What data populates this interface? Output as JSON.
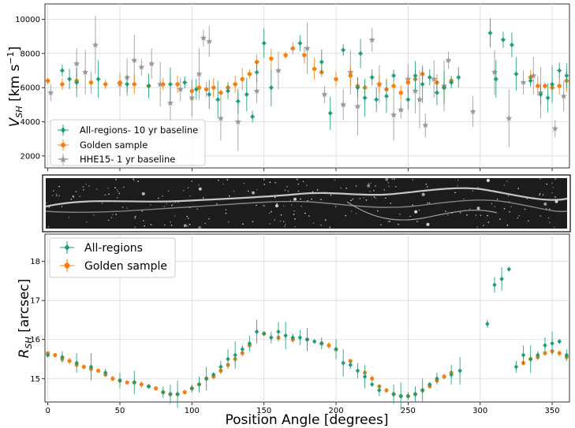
{
  "colors": {
    "all_regions": "#1b9e77",
    "golden": "#f77f0e",
    "hhe15": "#9a9a9a",
    "grid": "#d9d9d9"
  },
  "chart_data": [
    {
      "type": "scatter",
      "panel": "top",
      "ylabel": "V_SH [km s^-1]",
      "ylim": [
        1300,
        10900
      ],
      "xlim": [
        -2,
        362
      ],
      "yticks": [
        "2000",
        "4000",
        "6000",
        "8000",
        "10000"
      ],
      "grid": true,
      "legend_position": "bottom-left",
      "series": [
        {
          "name": "All-regions- 10 yr baseline",
          "color": "#1b9e77",
          "x": [
            10,
            15,
            20,
            35,
            55,
            70,
            85,
            95,
            103,
            112,
            118,
            125,
            132,
            138,
            142,
            145,
            150,
            155,
            175,
            190,
            196,
            205,
            215,
            217,
            220,
            225,
            228,
            235,
            240,
            250,
            255,
            260,
            265,
            270,
            275,
            280,
            285,
            307,
            311,
            316,
            322,
            325,
            335,
            342,
            347,
            350,
            355,
            360
          ],
          "y": [
            7000,
            6500,
            6300,
            6500,
            6200,
            6100,
            6200,
            6300,
            5900,
            5600,
            5300,
            5800,
            5200,
            5600,
            4300,
            6900,
            8600,
            6000,
            8600,
            7500,
            4500,
            8200,
            6000,
            8000,
            5400,
            6600,
            5300,
            5500,
            6700,
            5300,
            6700,
            6200,
            6600,
            5700,
            6000,
            6300,
            6600,
            9200,
            6500,
            8800,
            8500,
            6800,
            6400,
            5600,
            5400,
            6200,
            7000,
            6700
          ]
        },
        {
          "name": "Golden sample",
          "color": "#f77f0e",
          "x": [
            0,
            10,
            20,
            30,
            40,
            50,
            60,
            70,
            80,
            90,
            100,
            105,
            110,
            115,
            120,
            125,
            130,
            135,
            140,
            145,
            155,
            165,
            170,
            178,
            185,
            190,
            200,
            210,
            215,
            220,
            230,
            235,
            240,
            245,
            250,
            255,
            260,
            270,
            275,
            280,
            335,
            340,
            345,
            350,
            355,
            360
          ],
          "y": [
            6400,
            6200,
            6400,
            6300,
            6200,
            6300,
            6200,
            6100,
            6200,
            6200,
            5800,
            6000,
            5900,
            6000,
            5700,
            6000,
            6200,
            6500,
            6800,
            7500,
            7700,
            7900,
            8300,
            7900,
            7100,
            6900,
            6500,
            6700,
            6100,
            6000,
            6200,
            5900,
            6100,
            5700,
            6300,
            6500,
            6800,
            6300,
            6000,
            6400,
            6600,
            6100,
            6100,
            6000,
            6100,
            6400
          ]
        },
        {
          "name": "HHE15- 1 yr baseline",
          "color": "#9a9a9a",
          "x": [
            2,
            20,
            26,
            33,
            50,
            55,
            60,
            65,
            72,
            78,
            85,
            92,
            100,
            105,
            108,
            112,
            120,
            132,
            145,
            160,
            180,
            192,
            205,
            210,
            215,
            225,
            230,
            240,
            245,
            250,
            255,
            258,
            262,
            268,
            275,
            278,
            295,
            310,
            320,
            330,
            337,
            342,
            352,
            358
          ],
          "y": [
            5700,
            7400,
            6900,
            8500,
            6200,
            6600,
            7600,
            7200,
            7400,
            6200,
            5100,
            5900,
            5400,
            6800,
            8900,
            8700,
            4200,
            4000,
            5800,
            7000,
            8300,
            5600,
            5000,
            6900,
            4900,
            8800,
            6200,
            4400,
            4700,
            6500,
            5800,
            5300,
            3800,
            6500,
            6100,
            7600,
            4600,
            6900,
            4200,
            6300,
            6700,
            5700,
            3600,
            5500
          ]
        }
      ]
    },
    {
      "type": "image",
      "panel": "middle"
    },
    {
      "type": "scatter",
      "panel": "bottom",
      "xlabel": "Position Angle [degrees]",
      "ylabel": "R_SH [arcsec]",
      "xlim": [
        -2,
        362
      ],
      "ylim": [
        14.4,
        18.7
      ],
      "xticks": [
        "0",
        "50",
        "100",
        "150",
        "200",
        "250",
        "300",
        "350"
      ],
      "yticks": [
        "15",
        "16",
        "17",
        "18"
      ],
      "grid": true,
      "legend_position": "top-left",
      "series": [
        {
          "name": "All-regions",
          "color": "#1b9e77",
          "x": [
            0,
            10,
            20,
            30,
            40,
            50,
            60,
            70,
            80,
            85,
            90,
            100,
            105,
            110,
            115,
            120,
            125,
            130,
            135,
            140,
            145,
            150,
            155,
            160,
            165,
            170,
            175,
            180,
            185,
            190,
            200,
            205,
            210,
            215,
            220,
            225,
            230,
            240,
            245,
            250,
            255,
            260,
            265,
            270,
            280,
            286,
            305,
            310,
            315,
            320,
            325,
            330,
            335,
            340,
            345,
            350,
            355,
            360
          ],
          "y": [
            15.6,
            15.55,
            15.4,
            15.3,
            15.15,
            14.95,
            14.9,
            14.8,
            14.65,
            14.6,
            14.6,
            14.75,
            14.85,
            15.0,
            15.1,
            15.3,
            15.5,
            15.6,
            15.75,
            15.9,
            16.2,
            16.15,
            16.05,
            16.2,
            16.1,
            16.05,
            16.05,
            16.0,
            15.95,
            15.9,
            15.75,
            15.4,
            15.35,
            15.2,
            15.05,
            14.85,
            14.7,
            14.6,
            14.55,
            14.55,
            14.6,
            14.7,
            14.85,
            15.0,
            15.1,
            15.2,
            16.4,
            17.4,
            17.55,
            17.8,
            15.3,
            15.6,
            15.5,
            15.6,
            15.85,
            15.9,
            15.95,
            15.6
          ]
        },
        {
          "name": "Golden sample",
          "color": "#f77f0e",
          "x": [
            0,
            5,
            10,
            15,
            20,
            25,
            30,
            35,
            40,
            45,
            50,
            55,
            60,
            65,
            70,
            75,
            80,
            85,
            90,
            95,
            100,
            105,
            110,
            115,
            120,
            125,
            130,
            135,
            140,
            150,
            160,
            170,
            180,
            190,
            195,
            200,
            210,
            220,
            225,
            230,
            235,
            240,
            245,
            250,
            255,
            260,
            265,
            270,
            275,
            280,
            330,
            335,
            340,
            345,
            350,
            355,
            360
          ],
          "y": [
            15.65,
            15.6,
            15.5,
            15.45,
            15.35,
            15.3,
            15.25,
            15.2,
            15.1,
            15.0,
            14.95,
            14.9,
            14.9,
            14.85,
            14.8,
            14.75,
            14.65,
            14.6,
            14.6,
            14.65,
            14.75,
            14.85,
            15.0,
            15.05,
            15.2,
            15.35,
            15.5,
            15.65,
            15.85,
            16.15,
            16.05,
            16.0,
            16.0,
            15.9,
            15.85,
            15.75,
            15.45,
            15.15,
            15.0,
            14.8,
            14.7,
            14.6,
            14.55,
            14.55,
            14.6,
            14.7,
            14.8,
            14.95,
            15.05,
            15.15,
            15.4,
            15.5,
            15.55,
            15.65,
            15.7,
            15.65,
            15.55
          ]
        }
      ]
    }
  ],
  "legends": {
    "top": {
      "all_regions": "All-regions- 10 yr baseline",
      "golden": "Golden sample",
      "hhe15": "HHE15- 1 yr baseline"
    },
    "bottom": {
      "all_regions": "All-regions",
      "golden": "Golden sample"
    }
  },
  "axis_labels": {
    "top_y_main": "V",
    "top_y_sub": "SH",
    "top_y_unit": " [km s",
    "top_y_exp": "−1",
    "top_y_close": "]",
    "bottom_y_main": "R",
    "bottom_y_sub": "SH",
    "bottom_y_unit": " [arcsec]",
    "x": "Position Angle [degrees]"
  }
}
